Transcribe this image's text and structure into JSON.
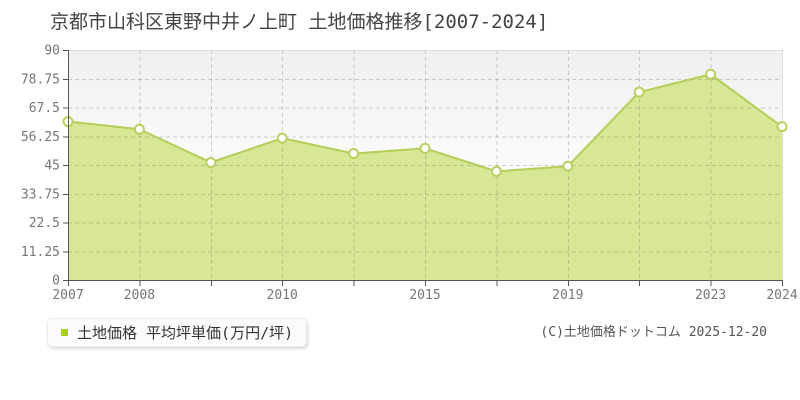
{
  "chart_data": {
    "type": "area",
    "title": "京都市山科区東野中井ノ上町 土地価格推移[2007-2024]",
    "series_name": "土地価格 平均坪単価(万円/坪)",
    "x": [
      2007,
      2008,
      2009,
      2010,
      2013,
      2015,
      2017,
      2019,
      2021,
      2023,
      2024
    ],
    "values": [
      62,
      59,
      46,
      55.5,
      49.5,
      51.5,
      42.5,
      44.5,
      73.5,
      80.5,
      60
    ],
    "xtick_labels_shown": [
      "2007",
      "2008",
      "",
      "2010",
      "",
      "2015",
      "",
      "2019",
      "",
      "2023",
      "2024"
    ],
    "ylim": [
      0,
      90
    ],
    "yticks": [
      0,
      11.25,
      22.5,
      33.75,
      45,
      56.25,
      67.5,
      78.75,
      90
    ],
    "ytick_labels": [
      "0",
      "11.25",
      "22.5",
      "33.75",
      "45",
      "56.25",
      "67.5",
      "78.75",
      "90"
    ],
    "grid": true,
    "legend_position": "bottom-left",
    "unit": "万円/坪",
    "colors": {
      "area_fill": "#d7e795",
      "line": "#b2ce58",
      "marker_fill": "#ffffff",
      "marker_stroke": "#b7d15e",
      "legend_bullet": "#a8d414",
      "grid": "rgba(120,120,120,0.35)",
      "plot_border": "#dddddd",
      "axis": "#555555",
      "tick_text": "#777777",
      "bg_top": "#efefef",
      "bg_bottom": "#ffffff"
    }
  },
  "legend": {
    "label": "土地価格 平均坪単価(万円/坪)"
  },
  "footer": {
    "copyright": "(C)土地価格ドットコム 2025-12-20"
  }
}
